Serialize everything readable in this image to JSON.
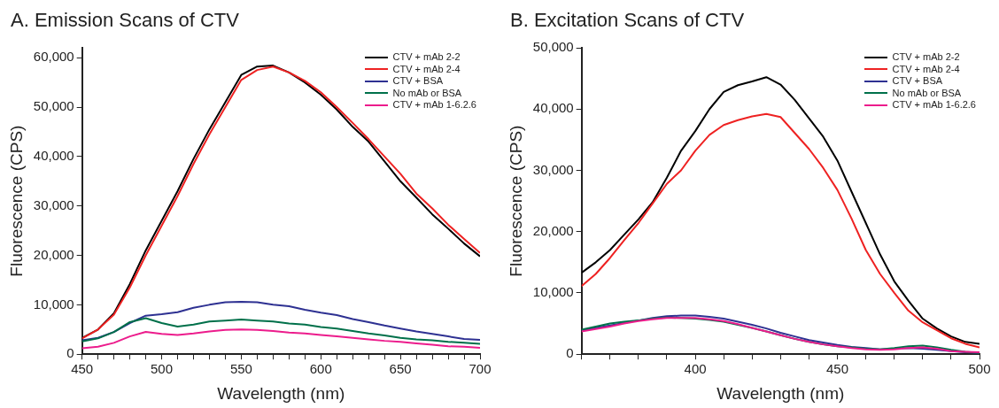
{
  "chart_data": [
    {
      "type": "line",
      "title": "A. Emission Scans of CTV",
      "xlabel": "Wavelength (nm)",
      "ylabel": "Fluorescence (CPS)",
      "xlim": [
        450,
        700
      ],
      "xticks": [
        450,
        {
          "value": 460,
          "label": null
        },
        {
          "value": 470,
          "label": null
        },
        {
          "value": 480,
          "label": null
        },
        {
          "value": 490,
          "label": null
        },
        500,
        {
          "value": 510,
          "label": null
        },
        {
          "value": 520,
          "label": null
        },
        {
          "value": 530,
          "label": null
        },
        {
          "value": 540,
          "label": null
        },
        550,
        {
          "value": 560,
          "label": null
        },
        {
          "value": 570,
          "label": null
        },
        {
          "value": 580,
          "label": null
        },
        {
          "value": 590,
          "label": null
        },
        600,
        {
          "value": 610,
          "label": null
        },
        {
          "value": 620,
          "label": null
        },
        {
          "value": 630,
          "label": null
        },
        {
          "value": 640,
          "label": null
        },
        650,
        {
          "value": 660,
          "label": null
        },
        {
          "value": 670,
          "label": null
        },
        {
          "value": 680,
          "label": null
        },
        {
          "value": 690,
          "label": null
        },
        700
      ],
      "ylim": [
        0,
        62000
      ],
      "yticks": [
        {
          "value": 0,
          "label": "0"
        },
        {
          "value": 10000,
          "label": "10,000"
        },
        {
          "value": 20000,
          "label": "20,000"
        },
        {
          "value": 30000,
          "label": "30,000"
        },
        {
          "value": 40000,
          "label": "40,000"
        },
        {
          "value": 50000,
          "label": "50,000"
        },
        {
          "value": 60000,
          "label": "60,000"
        }
      ],
      "legend": "top right",
      "marker": "none",
      "line_style": "solid",
      "x": [
        450,
        460,
        470,
        480,
        490,
        500,
        510,
        520,
        530,
        540,
        550,
        560,
        570,
        580,
        590,
        600,
        610,
        620,
        630,
        640,
        650,
        660,
        670,
        680,
        690,
        700
      ],
      "series": [
        {
          "name": "CTV + mAb 2-2",
          "color": "#000000",
          "values": [
            3300,
            5000,
            8300,
            14200,
            21000,
            27000,
            33000,
            39500,
            45500,
            51000,
            56500,
            58200,
            58400,
            57000,
            55000,
            52500,
            49500,
            46000,
            43000,
            39000,
            35000,
            31700,
            28300,
            25400,
            22400,
            19800
          ]
        },
        {
          "name": "CTV + mAb 2-4",
          "color": "#ee2222",
          "values": [
            3200,
            5000,
            8000,
            13500,
            20000,
            26000,
            32000,
            38500,
            44500,
            50000,
            55500,
            57500,
            58200,
            57000,
            55300,
            53000,
            50000,
            46800,
            43500,
            40000,
            36500,
            32500,
            29500,
            26200,
            23300,
            20500
          ]
        },
        {
          "name": "CTV + BSA",
          "color": "#2e3192",
          "values": [
            2800,
            3300,
            4500,
            6300,
            7800,
            8100,
            8500,
            9400,
            10000,
            10500,
            10600,
            10500,
            10000,
            9700,
            9000,
            8400,
            7900,
            7100,
            6500,
            5800,
            5200,
            4600,
            4100,
            3600,
            3100,
            2900
          ]
        },
        {
          "name": "No mAb or BSA",
          "color": "#00704a",
          "values": [
            2600,
            3200,
            4500,
            6500,
            7300,
            6300,
            5600,
            6000,
            6600,
            6800,
            7000,
            6800,
            6600,
            6200,
            6000,
            5500,
            5200,
            4700,
            4200,
            3800,
            3300,
            3000,
            2800,
            2500,
            2300,
            2100
          ]
        },
        {
          "name": "CTV + mAb 1-6.2.6",
          "color": "#ec1c8c",
          "values": [
            1200,
            1500,
            2300,
            3600,
            4500,
            4100,
            3900,
            4200,
            4600,
            4900,
            5000,
            4900,
            4700,
            4400,
            4200,
            3900,
            3600,
            3300,
            3000,
            2700,
            2500,
            2200,
            1900,
            1600,
            1500,
            1300
          ]
        }
      ]
    },
    {
      "type": "line",
      "title": "B. Excitation Scans of CTV",
      "xlabel": "Wavelength (nm)",
      "ylabel": "Fluorescence (CPS)",
      "xlim": [
        360,
        500
      ],
      "xticks": [
        {
          "value": 360,
          "label": null
        },
        {
          "value": 370,
          "label": null
        },
        {
          "value": 380,
          "label": null
        },
        {
          "value": 390,
          "label": null
        },
        400,
        {
          "value": 410,
          "label": null
        },
        {
          "value": 420,
          "label": null
        },
        {
          "value": 430,
          "label": null
        },
        {
          "value": 440,
          "label": null
        },
        450,
        {
          "value": 460,
          "label": null
        },
        {
          "value": 470,
          "label": null
        },
        {
          "value": 480,
          "label": null
        },
        {
          "value": 490,
          "label": null
        },
        500
      ],
      "ylim": [
        0,
        50000
      ],
      "yticks": [
        {
          "value": 0,
          "label": "0"
        },
        {
          "value": 10000,
          "label": "10,000"
        },
        {
          "value": 20000,
          "label": "20,000"
        },
        {
          "value": 30000,
          "label": "30,000"
        },
        {
          "value": 40000,
          "label": "40,000"
        },
        {
          "value": 50000,
          "label": "50,000"
        }
      ],
      "legend": "top right",
      "marker": "none",
      "line_style": "solid",
      "x": [
        360,
        365,
        370,
        375,
        380,
        385,
        390,
        395,
        400,
        405,
        410,
        415,
        420,
        425,
        430,
        435,
        440,
        445,
        450,
        455,
        460,
        465,
        470,
        475,
        480,
        485,
        490,
        495,
        500
      ],
      "series": [
        {
          "name": "CTV + mAb 2-2",
          "color": "#000000",
          "values": [
            13300,
            15000,
            17000,
            19500,
            22000,
            24800,
            28800,
            33200,
            36400,
            40000,
            42800,
            43900,
            44500,
            45200,
            44000,
            41500,
            38500,
            35500,
            31600,
            26500,
            21400,
            16300,
            11900,
            8700,
            5800,
            4200,
            2900,
            2000,
            1700
          ]
        },
        {
          "name": "CTV + mAb 2-4",
          "color": "#ee2222",
          "values": [
            11100,
            13100,
            15700,
            18600,
            21400,
            24600,
            27800,
            30000,
            33200,
            35800,
            37400,
            38200,
            38800,
            39200,
            38700,
            36100,
            33500,
            30400,
            26800,
            22100,
            17000,
            13100,
            10000,
            7100,
            5200,
            3900,
            2600,
            1700,
            1100
          ]
        },
        {
          "name": "CTV + BSA",
          "color": "#2e3192",
          "values": [
            3900,
            4300,
            4700,
            5100,
            5500,
            5900,
            6200,
            6300,
            6300,
            6100,
            5800,
            5300,
            4800,
            4200,
            3500,
            2900,
            2300,
            1900,
            1500,
            1200,
            1000,
            800,
            900,
            1000,
            900,
            700,
            500,
            300,
            200
          ]
        },
        {
          "name": "No mAb or BSA",
          "color": "#00704a",
          "values": [
            4000,
            4500,
            5000,
            5300,
            5500,
            5800,
            6000,
            5900,
            5800,
            5600,
            5300,
            4800,
            4300,
            3700,
            3100,
            2500,
            2000,
            1600,
            1300,
            1100,
            900,
            800,
            1000,
            1300,
            1400,
            1100,
            700,
            400,
            200
          ]
        },
        {
          "name": "CTV + mAb 1-6.2.6",
          "color": "#ec1c8c",
          "values": [
            3700,
            4100,
            4500,
            5000,
            5400,
            5700,
            5900,
            5900,
            5900,
            5700,
            5400,
            4900,
            4300,
            3700,
            3100,
            2500,
            2000,
            1600,
            1300,
            1000,
            800,
            700,
            800,
            1000,
            1100,
            900,
            500,
            400,
            300
          ]
        }
      ]
    }
  ]
}
